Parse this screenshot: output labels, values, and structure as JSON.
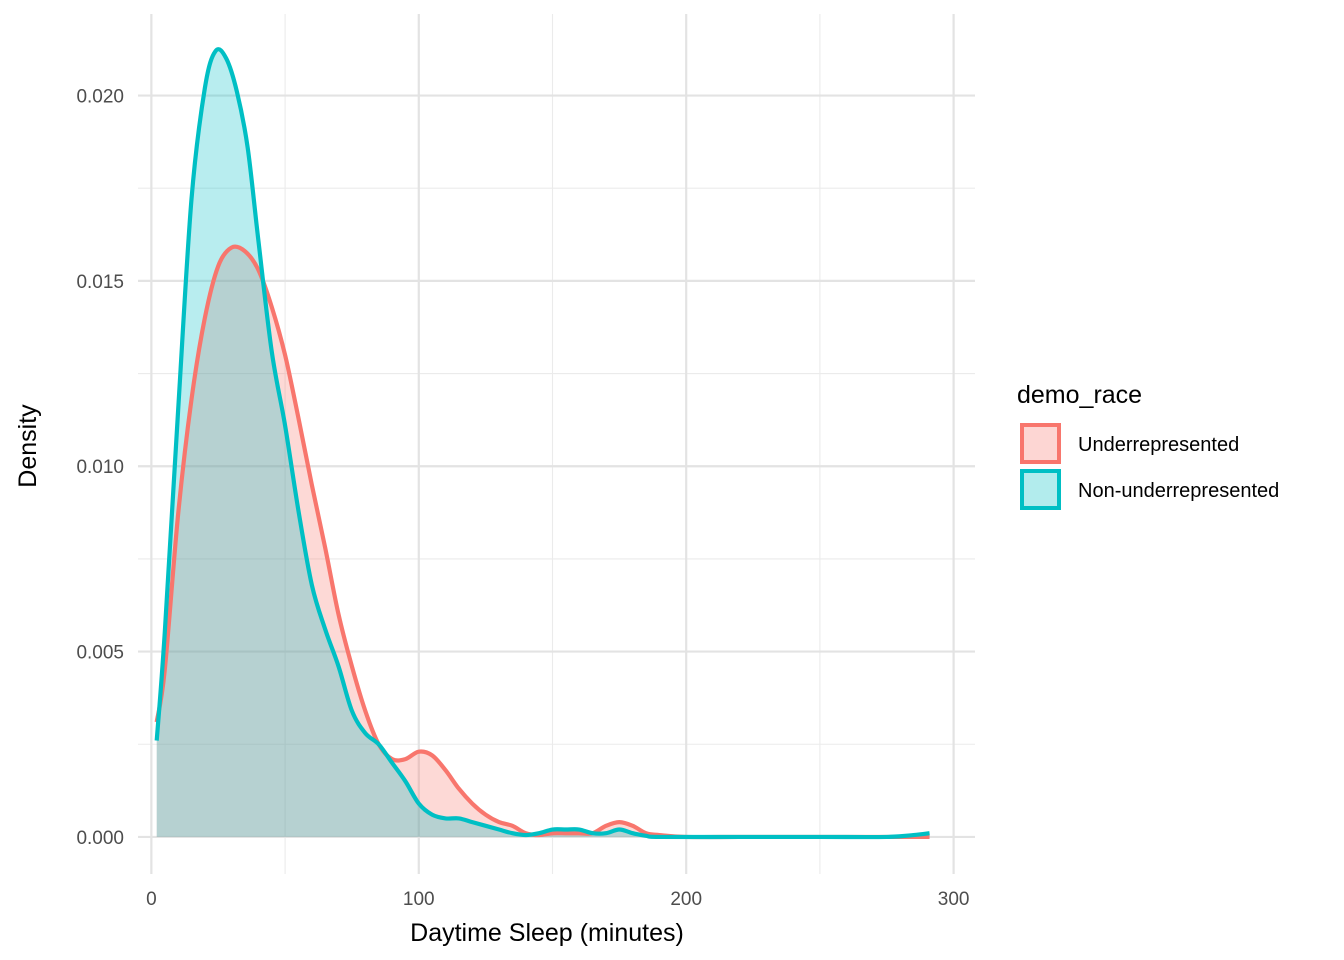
{
  "chart_data": {
    "type": "area",
    "xlabel": "Daytime Sleep (minutes)",
    "ylabel": "Density",
    "xlim": [
      -5,
      308
    ],
    "ylim": [
      -0.001,
      0.0222
    ],
    "x_ticks": [
      0,
      100,
      200,
      300
    ],
    "x_tick_labels": [
      "0",
      "100",
      "200",
      "300"
    ],
    "y_ticks": [
      0,
      0.005,
      0.01,
      0.015,
      0.02
    ],
    "y_tick_labels": [
      "0.000",
      "0.005",
      "0.010",
      "0.015",
      "0.020"
    ],
    "grid": true,
    "legend": {
      "title": "demo_race",
      "position": "right"
    },
    "series": [
      {
        "name": "Underrepresented",
        "color": "#F8766D",
        "points": [
          [
            2,
            0.0031
          ],
          [
            5,
            0.0045
          ],
          [
            10,
            0.0087
          ],
          [
            15,
            0.0118
          ],
          [
            20,
            0.014
          ],
          [
            25,
            0.0154
          ],
          [
            30,
            0.0159
          ],
          [
            35,
            0.0158
          ],
          [
            40,
            0.0153
          ],
          [
            45,
            0.0143
          ],
          [
            50,
            0.013
          ],
          [
            55,
            0.0113
          ],
          [
            60,
            0.0095
          ],
          [
            65,
            0.0078
          ],
          [
            70,
            0.006
          ],
          [
            75,
            0.0046
          ],
          [
            80,
            0.0034
          ],
          [
            85,
            0.0025
          ],
          [
            90,
            0.0021
          ],
          [
            95,
            0.0021
          ],
          [
            100,
            0.0023
          ],
          [
            105,
            0.0022
          ],
          [
            110,
            0.0018
          ],
          [
            115,
            0.0013
          ],
          [
            120,
            0.0009
          ],
          [
            125,
            0.0006
          ],
          [
            130,
            0.0004
          ],
          [
            135,
            0.0003
          ],
          [
            140,
            0.0001
          ],
          [
            145,
            5e-05
          ],
          [
            150,
            0.0001
          ],
          [
            155,
            0.0001
          ],
          [
            160,
            0.0001
          ],
          [
            165,
            0.0001
          ],
          [
            170,
            0.0003
          ],
          [
            175,
            0.0004
          ],
          [
            180,
            0.0003
          ],
          [
            185,
            0.0001
          ],
          [
            190,
            5e-05
          ],
          [
            200,
            0.0
          ],
          [
            220,
            0.0
          ],
          [
            240,
            0.0
          ],
          [
            260,
            0.0
          ],
          [
            280,
            0.0
          ],
          [
            291,
            0.0
          ]
        ]
      },
      {
        "name": "Non-underrepresented",
        "color": "#00BFC4",
        "points": [
          [
            2,
            0.0026
          ],
          [
            5,
            0.0055
          ],
          [
            10,
            0.0115
          ],
          [
            15,
            0.0172
          ],
          [
            20,
            0.0202
          ],
          [
            24,
            0.0212
          ],
          [
            28,
            0.021
          ],
          [
            32,
            0.0201
          ],
          [
            36,
            0.0186
          ],
          [
            40,
            0.0161
          ],
          [
            45,
            0.0131
          ],
          [
            50,
            0.0111
          ],
          [
            55,
            0.0088
          ],
          [
            60,
            0.0068
          ],
          [
            65,
            0.0056
          ],
          [
            70,
            0.0046
          ],
          [
            75,
            0.0034
          ],
          [
            80,
            0.0028
          ],
          [
            85,
            0.0025
          ],
          [
            90,
            0.002
          ],
          [
            95,
            0.0015
          ],
          [
            100,
            0.0009
          ],
          [
            105,
            0.0006
          ],
          [
            110,
            0.0005
          ],
          [
            115,
            0.0005
          ],
          [
            120,
            0.0004
          ],
          [
            125,
            0.0003
          ],
          [
            130,
            0.0002
          ],
          [
            135,
            0.0001
          ],
          [
            140,
            5e-05
          ],
          [
            145,
            0.0001
          ],
          [
            150,
            0.0002
          ],
          [
            155,
            0.0002
          ],
          [
            160,
            0.0002
          ],
          [
            165,
            0.0001
          ],
          [
            170,
            0.0001
          ],
          [
            175,
            0.0002
          ],
          [
            180,
            0.0001
          ],
          [
            185,
            3e-05
          ],
          [
            190,
            0.0
          ],
          [
            220,
            0.0
          ],
          [
            250,
            0.0
          ],
          [
            275,
            0.0
          ],
          [
            285,
            5e-05
          ],
          [
            291,
            0.0001
          ]
        ]
      }
    ]
  }
}
